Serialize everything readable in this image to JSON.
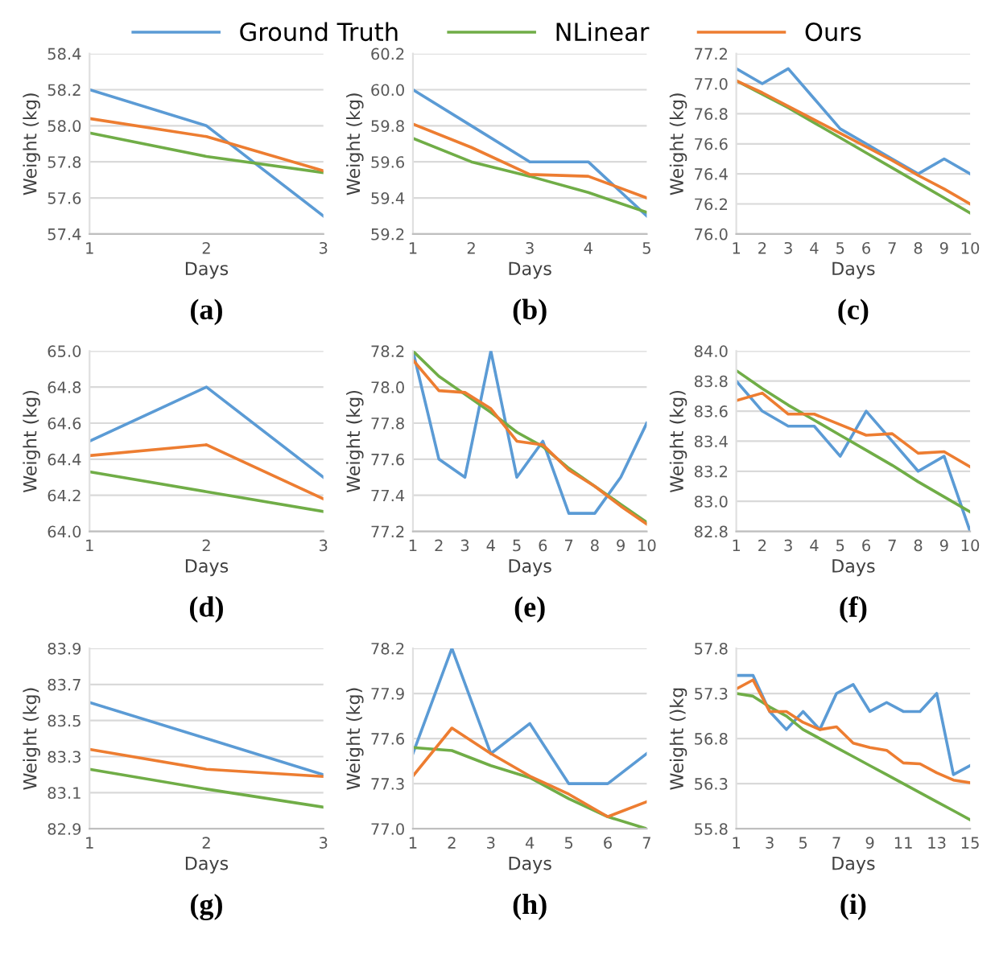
{
  "chart_data": [
    {
      "type": "line",
      "title": "(a)",
      "xlabel": "Days",
      "ylabel": "Weight (kg)",
      "categories": [
        "1",
        "2",
        "3"
      ],
      "ylim": [
        57.4,
        58.4
      ],
      "yticks": [
        57.4,
        57.6,
        57.8,
        {
          "value": 58,
          "label": "58.0"
        },
        58.2,
        58.4
      ],
      "grid": "y",
      "legend": "top",
      "series": [
        {
          "name": "Ground Truth",
          "color": "#5b9bd5",
          "values": [
            58.2,
            58.0,
            57.5
          ]
        },
        {
          "name": "NLinear",
          "color": "#70ad47",
          "values": [
            57.96,
            57.83,
            57.74
          ]
        },
        {
          "name": "Ours",
          "color": "#ed7d31",
          "values": [
            58.04,
            57.94,
            57.75
          ]
        }
      ]
    },
    {
      "type": "line",
      "title": "(b)",
      "xlabel": "Days",
      "ylabel": "Weight (kg)",
      "categories": [
        "1",
        "2",
        "3",
        "4",
        "5"
      ],
      "ylim": [
        59.2,
        60.2
      ],
      "yticks": [
        59.2,
        59.4,
        59.6,
        59.8,
        {
          "value": 60,
          "label": "60.0"
        },
        60.2
      ],
      "grid": "y",
      "series": [
        {
          "color": "#5b9bd5",
          "values": [
            60.0,
            59.8,
            59.6,
            59.6,
            59.3
          ]
        },
        {
          "color": "#70ad47",
          "values": [
            59.73,
            59.6,
            59.52,
            59.43,
            59.32
          ]
        },
        {
          "color": "#ed7d31",
          "values": [
            59.81,
            59.68,
            59.53,
            59.52,
            59.4
          ]
        }
      ]
    },
    {
      "type": "line",
      "title": "(c)",
      "xlabel": "Days",
      "ylabel": "Weight (kg)",
      "categories": [
        "1",
        "2",
        "3",
        "4",
        "5",
        "6",
        "7",
        "8",
        "9",
        "10"
      ],
      "ylim": [
        76.0,
        77.2
      ],
      "yticks": [
        {
          "value": 76,
          "label": "76.0"
        },
        76.2,
        76.4,
        76.6,
        76.8,
        {
          "value": 77,
          "label": "77.0"
        },
        77.2
      ],
      "grid": "y",
      "series": [
        {
          "color": "#5b9bd5",
          "values": [
            77.1,
            77.0,
            77.1,
            76.9,
            76.7,
            76.6,
            76.5,
            76.4,
            76.5,
            76.4
          ]
        },
        {
          "color": "#70ad47",
          "values": [
            77.02,
            76.93,
            76.84,
            76.74,
            76.64,
            76.54,
            76.44,
            76.34,
            76.24,
            76.14
          ]
        },
        {
          "color": "#ed7d31",
          "values": [
            77.02,
            76.94,
            76.85,
            76.76,
            76.67,
            76.58,
            76.49,
            76.39,
            76.3,
            76.2
          ]
        }
      ]
    },
    {
      "type": "line",
      "title": "(d)",
      "xlabel": "Days",
      "ylabel": "Weight (kg)",
      "categories": [
        "1",
        "2",
        "3"
      ],
      "ylim": [
        64.0,
        65.0
      ],
      "yticks": [
        {
          "value": 64,
          "label": "64.0"
        },
        64.2,
        64.4,
        64.6,
        64.8,
        {
          "value": 65,
          "label": "65.0"
        }
      ],
      "grid": "y",
      "series": [
        {
          "color": "#5b9bd5",
          "values": [
            64.5,
            64.8,
            64.3
          ]
        },
        {
          "color": "#70ad47",
          "values": [
            64.33,
            64.22,
            64.11
          ]
        },
        {
          "color": "#ed7d31",
          "values": [
            64.42,
            64.48,
            64.18
          ]
        }
      ]
    },
    {
      "type": "line",
      "title": "(e)",
      "xlabel": "Days",
      "ylabel": "Weight (kg)",
      "categories": [
        "1",
        "2",
        "3",
        "4",
        "5",
        "6",
        "7",
        "8",
        "9",
        "10"
      ],
      "ylim": [
        77.2,
        78.2
      ],
      "yticks": [
        77.2,
        77.4,
        77.6,
        77.8,
        {
          "value": 78,
          "label": "78.0"
        },
        78.2
      ],
      "grid": "y",
      "series": [
        {
          "color": "#5b9bd5",
          "values": [
            78.2,
            77.6,
            77.5,
            78.2,
            77.5,
            77.7,
            77.3,
            77.3,
            77.5,
            77.8
          ]
        },
        {
          "color": "#70ad47",
          "values": [
            78.2,
            78.06,
            77.96,
            77.86,
            77.75,
            77.67,
            77.55,
            77.45,
            77.35,
            77.25
          ]
        },
        {
          "color": "#ed7d31",
          "values": [
            78.15,
            77.98,
            77.97,
            77.88,
            77.7,
            77.68,
            77.54,
            77.45,
            77.34,
            77.24
          ]
        }
      ]
    },
    {
      "type": "line",
      "title": "(f)",
      "xlabel": "Days",
      "ylabel": "Weight (kg)",
      "categories": [
        "1",
        "2",
        "3",
        "4",
        "5",
        "6",
        "7",
        "8",
        "9",
        "10"
      ],
      "ylim": [
        82.8,
        84.0
      ],
      "yticks": [
        82.8,
        {
          "value": 83,
          "label": "83.0"
        },
        83.2,
        83.4,
        83.6,
        83.8,
        {
          "value": 84,
          "label": "84.0"
        }
      ],
      "grid": "y",
      "series": [
        {
          "color": "#5b9bd5",
          "values": [
            83.8,
            83.6,
            83.5,
            83.5,
            83.3,
            83.6,
            83.4,
            83.2,
            83.3,
            82.8
          ]
        },
        {
          "color": "#70ad47",
          "values": [
            83.87,
            83.75,
            83.64,
            83.54,
            83.44,
            83.34,
            83.24,
            83.13,
            83.03,
            82.93
          ]
        },
        {
          "color": "#ed7d31",
          "values": [
            83.67,
            83.72,
            83.58,
            83.58,
            83.51,
            83.44,
            83.45,
            83.32,
            83.33,
            83.23
          ]
        }
      ]
    },
    {
      "type": "line",
      "title": "(g)",
      "xlabel": "Days",
      "ylabel": "Weight (kg)",
      "categories": [
        "1",
        "2",
        "3"
      ],
      "ylim": [
        82.9,
        83.9
      ],
      "yticks": [
        82.9,
        83.1,
        83.3,
        83.5,
        83.7,
        83.9
      ],
      "grid": "y",
      "series": [
        {
          "color": "#5b9bd5",
          "values": [
            83.6,
            83.4,
            83.2
          ]
        },
        {
          "color": "#70ad47",
          "values": [
            83.23,
            83.12,
            83.02
          ]
        },
        {
          "color": "#ed7d31",
          "values": [
            83.34,
            83.23,
            83.19
          ]
        }
      ]
    },
    {
      "type": "line",
      "title": "(h)",
      "xlabel": "Days",
      "ylabel": "Weight (kg)",
      "categories": [
        "1",
        "2",
        "3",
        "4",
        "5",
        "6",
        "7"
      ],
      "ylim": [
        77.0,
        78.2
      ],
      "yticks": [
        {
          "value": 77,
          "label": "77.0"
        },
        77.3,
        77.6,
        77.9,
        78.2
      ],
      "grid": "y",
      "series": [
        {
          "color": "#5b9bd5",
          "values": [
            77.5,
            78.2,
            77.5,
            77.7,
            77.3,
            77.3,
            77.5
          ]
        },
        {
          "color": "#70ad47",
          "values": [
            77.54,
            77.52,
            77.42,
            77.34,
            77.2,
            77.08,
            77.0
          ]
        },
        {
          "color": "#ed7d31",
          "values": [
            77.35,
            77.67,
            77.5,
            77.35,
            77.23,
            77.08,
            77.18
          ]
        }
      ]
    },
    {
      "type": "line",
      "title": "(i)",
      "xlabel": "Days",
      "ylabel": "Weight ()kg",
      "categories": [
        "1",
        null,
        "3",
        null,
        "5",
        null,
        "7",
        null,
        "9",
        null,
        "11",
        null,
        "13",
        null,
        "15"
      ],
      "ylim": [
        55.8,
        57.8
      ],
      "yticks": [
        55.8,
        56.3,
        56.8,
        57.3,
        57.8
      ],
      "grid": "y",
      "series": [
        {
          "color": "#5b9bd5",
          "values": [
            57.5,
            57.5,
            57.1,
            56.9,
            57.1,
            56.9,
            57.3,
            57.4,
            57.1,
            57.2,
            57.1,
            57.1,
            57.3,
            56.4,
            56.5
          ]
        },
        {
          "color": "#70ad47",
          "values": [
            57.3,
            57.27,
            57.15,
            57.05,
            56.9,
            56.8,
            56.7,
            56.6,
            56.5,
            56.4,
            56.3,
            56.2,
            56.1,
            56.0,
            55.9
          ]
        },
        {
          "color": "#ed7d31",
          "values": [
            57.35,
            57.45,
            57.1,
            57.1,
            56.98,
            56.9,
            56.93,
            56.75,
            56.7,
            56.67,
            56.53,
            56.52,
            56.42,
            56.34,
            56.31
          ]
        }
      ]
    }
  ]
}
